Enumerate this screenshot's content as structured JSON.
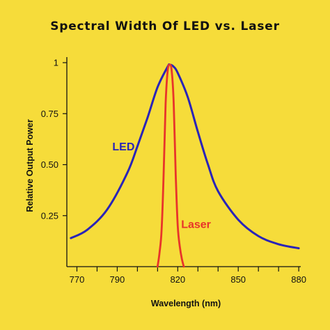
{
  "chart_data": {
    "type": "line",
    "title": "Spectral Width Of LED vs. Laser",
    "xlabel": "Wavelength (nm)",
    "ylabel": "Relative Output Power",
    "xlim": [
      765,
      881
    ],
    "ylim": [
      0,
      1
    ],
    "x_ticks": [
      770,
      790,
      820,
      850,
      880
    ],
    "x_tick_labels": [
      "770",
      "790",
      "820",
      "850",
      "880"
    ],
    "x_minor_ticks": [
      780,
      800,
      810,
      830,
      840,
      860,
      870
    ],
    "y_ticks": [
      0.25,
      0.5,
      0.75,
      1
    ],
    "y_tick_labels": [
      "0.25",
      "0.50",
      "0.75",
      "1"
    ],
    "grid": false,
    "series": [
      {
        "name": "LED",
        "color": "#2A24B8",
        "x": [
          767,
          775,
          785,
          795,
          800,
          805,
          810,
          815,
          816,
          818,
          820,
          825,
          830,
          835,
          840,
          850,
          860,
          870,
          880
        ],
        "y": [
          0.14,
          0.18,
          0.28,
          0.46,
          0.59,
          0.73,
          0.88,
          0.98,
          0.99,
          0.98,
          0.95,
          0.83,
          0.66,
          0.5,
          0.37,
          0.23,
          0.15,
          0.11,
          0.09
        ]
      },
      {
        "name": "Laser",
        "color": "#E8342A",
        "x": [
          810,
          811,
          812,
          813,
          814,
          815,
          816,
          817,
          818,
          819,
          820,
          821,
          822,
          823
        ],
        "y": [
          0.0,
          0.07,
          0.18,
          0.45,
          0.8,
          0.96,
          0.99,
          0.96,
          0.8,
          0.45,
          0.2,
          0.1,
          0.04,
          0.0
        ]
      }
    ]
  }
}
